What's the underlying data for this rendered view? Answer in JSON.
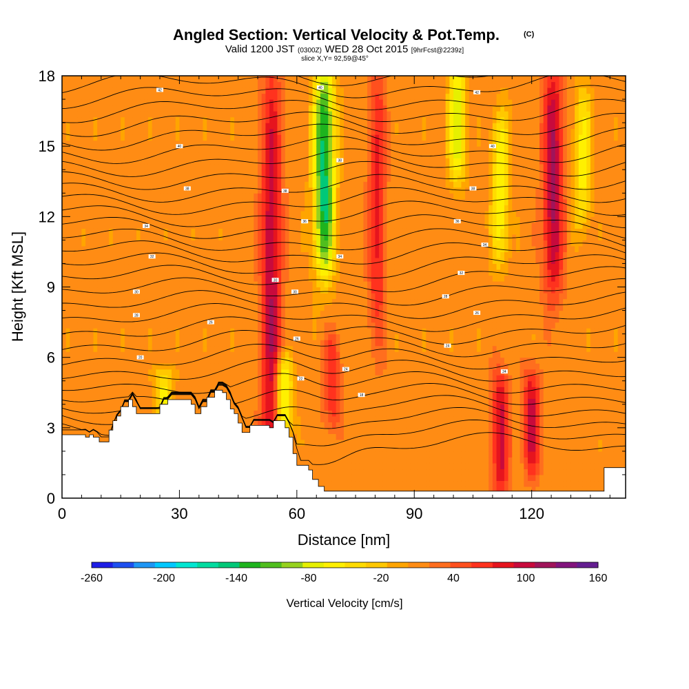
{
  "chart_data": {
    "type": "heatmap",
    "title": "Angled Section: Vertical Velocity & Pot.Temp.",
    "title_unit": "(C)",
    "subtitle": {
      "pre": "Valid 1200 JST",
      "utc": "(0300Z)",
      "date": "WED 28 Oct 2015",
      "fcst": "[9hrFcst@2239z]"
    },
    "slice_label": "slice X,Y= 92,59@45°",
    "xlabel": "Distance [nm]",
    "ylabel": "Height [Kft MSL]",
    "xlim": [
      0,
      144
    ],
    "ylim": [
      0,
      18
    ],
    "x_ticks": [
      "0",
      "30",
      "60",
      "90",
      "120"
    ],
    "x_tick_values": [
      0,
      30,
      60,
      90,
      120
    ],
    "y_ticks": [
      "0",
      "3",
      "6",
      "9",
      "12",
      "15",
      "18"
    ],
    "y_tick_values": [
      0,
      3,
      6,
      9,
      12,
      15,
      18
    ],
    "colorbar": {
      "label": "Vertical Velocity [cm/s]",
      "tick_labels": [
        "-260",
        "-200",
        "-140",
        "-80",
        "-20",
        "40",
        "100",
        "160"
      ],
      "tick_values": [
        -260,
        -200,
        -140,
        -80,
        -20,
        40,
        100,
        160
      ],
      "colors": [
        "#1e1ee6",
        "#1e50f0",
        "#1e96f5",
        "#00c8ff",
        "#00e6d2",
        "#00dca0",
        "#00c878",
        "#1eb41e",
        "#50be1e",
        "#96d21e",
        "#e6f000",
        "#fff000",
        "#ffdc00",
        "#ffc800",
        "#ffa500",
        "#ff8c14",
        "#ff6e1e",
        "#ff501e",
        "#ff321e",
        "#e6141e",
        "#c80a3c",
        "#a0145a",
        "#82147d",
        "#641e91"
      ]
    },
    "velocity_field": {
      "background_cm_s": 10,
      "updrafts_cm_s": [
        {
          "x_nm": 53.5,
          "peak": 105,
          "z_kft": [
            0,
            18
          ]
        },
        {
          "x_nm": 80.5,
          "peak": 75,
          "z_kft": [
            7,
            18
          ]
        },
        {
          "x_nm": 125.5,
          "peak": 110,
          "z_kft": [
            9,
            18
          ]
        },
        {
          "x_nm": 112,
          "peak": 95,
          "z_kft": [
            0.5,
            5
          ]
        },
        {
          "x_nm": 120,
          "peak": 95,
          "z_kft": [
            1.5,
            5
          ]
        },
        {
          "x_nm": 69,
          "peak": 70,
          "z_kft": [
            3.5,
            6.5
          ]
        }
      ],
      "downdrafts_cm_s": [
        {
          "x_nm": 67,
          "peak": -145,
          "z_kft": [
            10,
            18
          ]
        },
        {
          "x_nm": 101,
          "peak": -80,
          "z_kft": [
            14,
            18
          ]
        },
        {
          "x_nm": 56.5,
          "peak": -90,
          "z_kft": [
            3.2,
            5.5
          ]
        },
        {
          "x_nm": 112,
          "peak": -65,
          "z_kft": [
            10.5,
            16
          ]
        },
        {
          "x_nm": 133,
          "peak": -55,
          "z_kft": [
            12,
            17
          ]
        },
        {
          "x_nm": 26,
          "peak": -55,
          "z_kft": [
            4,
            5
          ]
        }
      ]
    },
    "terrain_top_kft": [
      [
        0,
        2.7
      ],
      [
        3.5,
        2.7
      ],
      [
        6,
        2.6
      ],
      [
        7,
        2.7
      ],
      [
        8,
        2.6
      ],
      [
        9.5,
        2.4
      ],
      [
        11,
        2.4
      ],
      [
        12,
        2.9
      ],
      [
        13,
        3.3
      ],
      [
        14,
        3.5
      ],
      [
        15,
        3.9
      ],
      [
        17,
        4.2
      ],
      [
        18,
        3.9
      ],
      [
        19,
        3.6
      ],
      [
        24,
        3.6
      ],
      [
        25,
        4.0
      ],
      [
        27,
        4.2
      ],
      [
        30,
        4.2
      ],
      [
        33,
        4.0
      ],
      [
        34,
        3.6
      ],
      [
        35.5,
        3.9
      ],
      [
        37,
        4.3
      ],
      [
        39,
        4.6
      ],
      [
        41,
        4.5
      ],
      [
        42,
        4.2
      ],
      [
        43,
        3.8
      ],
      [
        44,
        3.6
      ],
      [
        45,
        3.2
      ],
      [
        46,
        2.8
      ],
      [
        48,
        3.1
      ],
      [
        51,
        3.1
      ],
      [
        53,
        3.0
      ],
      [
        54,
        3.3
      ],
      [
        56,
        3.3
      ],
      [
        57,
        3.0
      ],
      [
        58,
        2.6
      ],
      [
        59,
        1.9
      ],
      [
        60,
        1.4
      ],
      [
        62,
        1.4
      ],
      [
        63,
        1.2
      ],
      [
        64,
        0.8
      ],
      [
        65.5,
        0.5
      ],
      [
        67,
        0.3
      ],
      [
        70,
        0.3
      ],
      [
        115,
        0.3
      ],
      [
        118,
        0.3
      ],
      [
        129,
        0.3
      ],
      [
        138,
        0.3
      ],
      [
        138.5,
        1.3
      ],
      [
        144,
        1.3
      ]
    ],
    "isentrope_labels": [
      {
        "text": "42",
        "x": 25,
        "z": 17.4
      },
      {
        "text": "40",
        "x": 66,
        "z": 17.5
      },
      {
        "text": "42",
        "x": 106,
        "z": 17.3
      },
      {
        "text": "40",
        "x": 30,
        "z": 15.0
      },
      {
        "text": "40",
        "x": 110,
        "z": 15.0
      },
      {
        "text": "38",
        "x": 71,
        "z": 14.4
      },
      {
        "text": "38",
        "x": 32,
        "z": 13.2
      },
      {
        "text": "38",
        "x": 57,
        "z": 13.1
      },
      {
        "text": "38",
        "x": 105,
        "z": 13.2
      },
      {
        "text": "36",
        "x": 62,
        "z": 11.8
      },
      {
        "text": "36",
        "x": 101,
        "z": 11.8
      },
      {
        "text": "34",
        "x": 21.5,
        "z": 11.6
      },
      {
        "text": "34",
        "x": 108,
        "z": 10.8
      },
      {
        "text": "32",
        "x": 23,
        "z": 10.3
      },
      {
        "text": "34",
        "x": 71,
        "z": 10.3
      },
      {
        "text": "32",
        "x": 102,
        "z": 9.6
      },
      {
        "text": "30",
        "x": 54.5,
        "z": 9.3
      },
      {
        "text": "30",
        "x": 19,
        "z": 8.8
      },
      {
        "text": "30",
        "x": 59.5,
        "z": 8.8
      },
      {
        "text": "28",
        "x": 98,
        "z": 8.6
      },
      {
        "text": "28",
        "x": 19,
        "z": 7.8
      },
      {
        "text": "26",
        "x": 106,
        "z": 7.9
      },
      {
        "text": "26",
        "x": 38,
        "z": 7.5
      },
      {
        "text": "26",
        "x": 60,
        "z": 6.8
      },
      {
        "text": "24",
        "x": 98.5,
        "z": 6.5
      },
      {
        "text": "20",
        "x": 20,
        "z": 6.0
      },
      {
        "text": "24",
        "x": 72.5,
        "z": 5.5
      },
      {
        "text": "24",
        "x": 113,
        "z": 5.4
      },
      {
        "text": "22",
        "x": 61,
        "z": 5.1
      },
      {
        "text": "18",
        "x": 76.5,
        "z": 4.4
      }
    ]
  }
}
